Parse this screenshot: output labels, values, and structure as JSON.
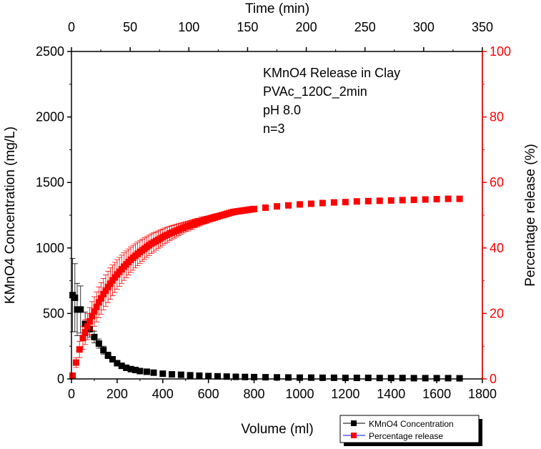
{
  "chart_data": {
    "type": "scatter",
    "title": "",
    "annotation": [
      "KMnO4 Release in Clay",
      "PVAc_120C_2min",
      "pH 8.0",
      "n=3"
    ],
    "xlabel": "Volume (ml)",
    "x2label": "Time (min)",
    "ylabel": "KMnO4 Concentration (mg/L)",
    "y2label": "Percentage release (%)",
    "xlim": [
      0,
      1800
    ],
    "x2lim": [
      0,
      350
    ],
    "ylim": [
      0,
      2500
    ],
    "y2lim": [
      0,
      100
    ],
    "xticks": [
      "0",
      "200",
      "400",
      "600",
      "800",
      "1000",
      "1200",
      "1400",
      "1600",
      "1800"
    ],
    "x2ticks": [
      "0",
      "50",
      "100",
      "150",
      "200",
      "250",
      "300",
      "350"
    ],
    "yticks": [
      "0",
      "500",
      "1000",
      "1500",
      "2000",
      "2500"
    ],
    "y2ticks": [
      "0",
      "20",
      "40",
      "60",
      "80",
      "100"
    ],
    "legend_position": "bottom-right",
    "series": [
      {
        "name": "KMnO4 Concentration",
        "axis": "left",
        "color": "#000000",
        "x": [
          5,
          15,
          25,
          40,
          60,
          80,
          100,
          120,
          140,
          160,
          180,
          200,
          220,
          240,
          260,
          280,
          300,
          330,
          360,
          400,
          440,
          480,
          520,
          560,
          600,
          640,
          680,
          720,
          760,
          800,
          850,
          900,
          950,
          1000,
          1050,
          1100,
          1150,
          1200,
          1250,
          1300,
          1350,
          1400,
          1450,
          1500,
          1550,
          1600,
          1650,
          1700
        ],
        "y": [
          640,
          620,
          530,
          530,
          420,
          380,
          320,
          270,
          220,
          180,
          150,
          120,
          100,
          85,
          75,
          68,
          60,
          55,
          48,
          40,
          35,
          32,
          28,
          25,
          22,
          20,
          18,
          16,
          15,
          14,
          13,
          12,
          11,
          10,
          10,
          9,
          9,
          8,
          8,
          8,
          7,
          7,
          7,
          6,
          6,
          6,
          6,
          5
        ],
        "err": [
          280,
          260,
          200,
          180,
          90,
          60,
          45,
          35,
          30,
          25,
          20,
          15,
          12,
          10,
          9,
          8,
          7,
          6,
          6,
          5,
          5,
          4,
          4,
          4,
          3,
          3,
          3,
          3,
          3,
          3,
          0,
          0,
          0,
          0,
          0,
          0,
          0,
          0,
          0,
          0,
          0,
          0,
          0,
          0,
          0,
          0,
          0,
          0
        ]
      },
      {
        "name": "Percentage release",
        "axis": "right",
        "color": "#ff0000",
        "legend_line_color": "#0000ff",
        "x": [
          5,
          20,
          35,
          50,
          60,
          70,
          80,
          90,
          100,
          110,
          120,
          130,
          140,
          150,
          160,
          170,
          180,
          190,
          200,
          210,
          220,
          230,
          240,
          250,
          260,
          270,
          280,
          290,
          300,
          310,
          320,
          330,
          340,
          350,
          360,
          370,
          380,
          390,
          400,
          410,
          420,
          430,
          440,
          450,
          460,
          470,
          480,
          490,
          500,
          510,
          520,
          530,
          540,
          550,
          560,
          570,
          580,
          590,
          600,
          610,
          620,
          630,
          640,
          650,
          660,
          670,
          680,
          690,
          700,
          710,
          720,
          730,
          740,
          750,
          760,
          770,
          780,
          790,
          800,
          850,
          900,
          950,
          1000,
          1050,
          1100,
          1150,
          1200,
          1250,
          1300,
          1350,
          1400,
          1450,
          1500,
          1550,
          1600,
          1650,
          1700
        ],
        "y": [
          1.0,
          5.0,
          9.0,
          12.5,
          14.3,
          16.0,
          17.6,
          19.2,
          20.6,
          22.0,
          23.4,
          24.6,
          25.9,
          27.0,
          28.1,
          29.1,
          30.1,
          31.0,
          31.9,
          32.7,
          33.5,
          34.3,
          35.0,
          35.7,
          36.4,
          37.0,
          37.6,
          38.2,
          38.8,
          39.3,
          39.8,
          40.3,
          40.8,
          41.3,
          41.7,
          42.1,
          42.5,
          42.9,
          43.3,
          43.7,
          44.0,
          44.4,
          44.7,
          45.0,
          45.3,
          45.6,
          45.9,
          46.2,
          46.5,
          46.7,
          47.0,
          47.2,
          47.5,
          47.7,
          47.9,
          48.2,
          48.4,
          48.6,
          48.8,
          49.0,
          49.2,
          49.4,
          49.6,
          49.8,
          50.0,
          50.2,
          50.4,
          50.6,
          50.8,
          51.0,
          51.1,
          51.2,
          51.3,
          51.4,
          51.5,
          51.6,
          51.7,
          51.8,
          51.9,
          52.3,
          52.7,
          53.0,
          53.3,
          53.5,
          53.7,
          53.9,
          54.0,
          54.2,
          54.3,
          54.4,
          54.5,
          54.6,
          54.7,
          54.8,
          54.9,
          55.0,
          55.0
        ],
        "err": [
          0.5,
          1.5,
          2.5,
          3.5,
          3.8,
          4.0,
          4.2,
          4.4,
          4.5,
          4.6,
          4.7,
          4.8,
          4.8,
          4.8,
          4.8,
          4.8,
          4.7,
          4.6,
          4.5,
          4.4,
          4.3,
          4.2,
          4.1,
          4.0,
          3.9,
          3.8,
          3.7,
          3.6,
          3.5,
          3.4,
          3.3,
          3.2,
          3.1,
          3.0,
          2.9,
          2.8,
          2.7,
          2.6,
          2.5,
          2.4,
          2.3,
          2.2,
          2.1,
          2.0,
          1.9,
          1.8,
          1.7,
          1.6,
          1.5,
          1.5,
          1.4,
          1.4,
          1.3,
          1.3,
          1.2,
          1.2,
          1.1,
          1.1,
          1.0,
          1.0,
          1.0,
          1.0,
          0.9,
          0.9,
          0.9,
          0.9,
          0.9,
          0.9,
          0.0,
          0.0,
          0.0,
          0.0,
          0.0,
          0.0,
          0.0,
          0.0,
          0.0,
          0.0,
          0.0,
          0.0,
          0.0,
          0.0,
          0.0,
          0.0,
          0.0,
          0.0,
          0.0,
          0.0,
          0.0,
          0.0,
          0.0,
          0.0,
          0.0,
          0.0,
          0.0,
          0.0,
          0.0
        ]
      }
    ]
  }
}
